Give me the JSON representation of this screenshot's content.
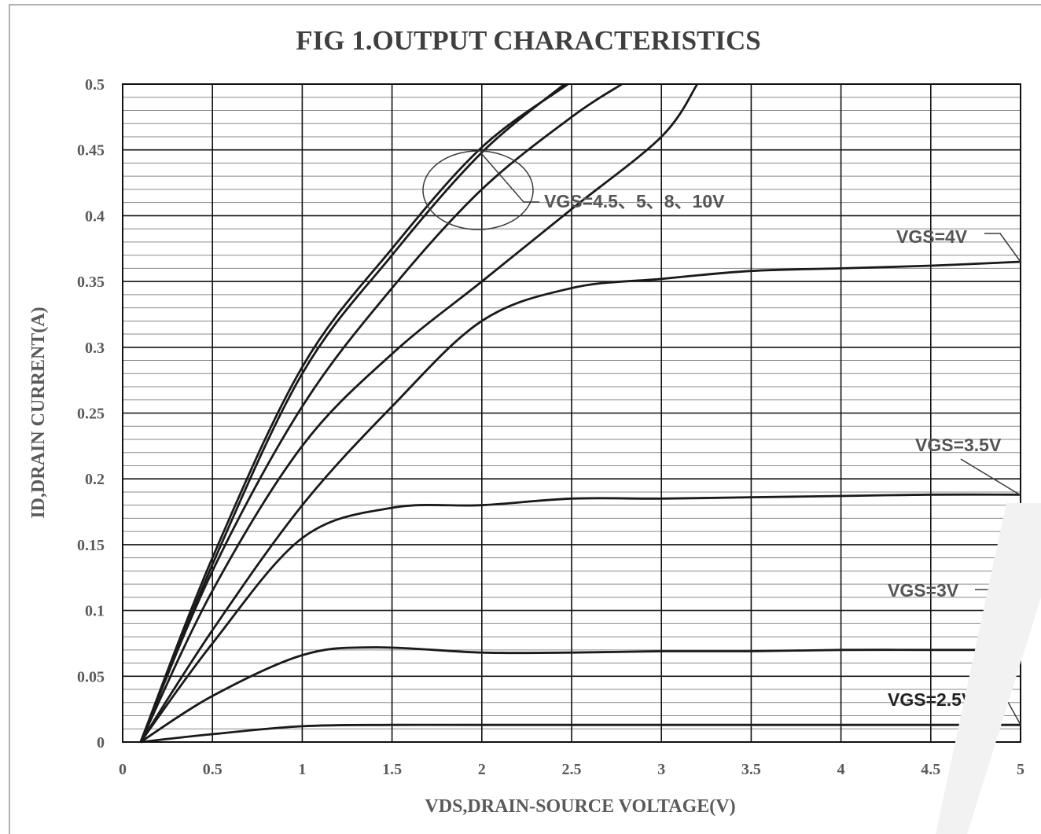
{
  "chart_data": {
    "type": "line",
    "title": "FIG 1.OUTPUT CHARACTERISTICS",
    "xlabel": "VDS,DRAIN-SOURCE   VOLTAGE(V)",
    "ylabel": "ID,DRAIN   CURRENT(A)",
    "xlim": [
      0,
      5
    ],
    "ylim": [
      0,
      0.5
    ],
    "x_ticks": [
      "0",
      "0.5",
      "1",
      "1.5",
      "2",
      "2.5",
      "3",
      "3.5",
      "4",
      "4.5",
      "5"
    ],
    "y_ticks": [
      "0",
      "0.05",
      "0.1",
      "0.15",
      "0.2",
      "0.25",
      "0.3",
      "0.35",
      "0.4",
      "0.45",
      "0.5"
    ],
    "grid": true,
    "series": [
      {
        "key": "vgs10",
        "values": [
          [
            0.1,
            0
          ],
          [
            0.5,
            0.14
          ],
          [
            1,
            0.285
          ],
          [
            1.5,
            0.375
          ],
          [
            2,
            0.452
          ],
          [
            2.48,
            0.5
          ]
        ]
      },
      {
        "key": "vgs8",
        "values": [
          [
            0.1,
            0
          ],
          [
            0.5,
            0.135
          ],
          [
            1,
            0.28
          ],
          [
            1.5,
            0.37
          ],
          [
            2,
            0.448
          ],
          [
            2.46,
            0.5
          ]
        ]
      },
      {
        "key": "vgs5",
        "values": [
          [
            0.1,
            0
          ],
          [
            0.5,
            0.13
          ],
          [
            1,
            0.255
          ],
          [
            1.5,
            0.345
          ],
          [
            2,
            0.42
          ],
          [
            2.5,
            0.475
          ],
          [
            2.78,
            0.5
          ]
        ]
      },
      {
        "key": "vgs4.5",
        "values": [
          [
            0.1,
            0
          ],
          [
            0.5,
            0.115
          ],
          [
            1,
            0.225
          ],
          [
            1.5,
            0.295
          ],
          [
            2,
            0.35
          ],
          [
            2.5,
            0.405
          ],
          [
            3,
            0.46
          ],
          [
            3.2,
            0.5
          ]
        ]
      },
      {
        "key": "vgs4",
        "values": [
          [
            0.1,
            0
          ],
          [
            0.5,
            0.085
          ],
          [
            1,
            0.18
          ],
          [
            1.5,
            0.255
          ],
          [
            2,
            0.32
          ],
          [
            2.5,
            0.345
          ],
          [
            3,
            0.352
          ],
          [
            3.5,
            0.358
          ],
          [
            4,
            0.36
          ],
          [
            4.5,
            0.362
          ],
          [
            5,
            0.365
          ]
        ]
      },
      {
        "key": "vgs3.5",
        "values": [
          [
            0.1,
            0
          ],
          [
            0.5,
            0.075
          ],
          [
            1,
            0.155
          ],
          [
            1.5,
            0.178
          ],
          [
            2,
            0.18
          ],
          [
            2.5,
            0.185
          ],
          [
            3,
            0.185
          ],
          [
            3.5,
            0.186
          ],
          [
            4,
            0.187
          ],
          [
            4.5,
            0.188
          ],
          [
            5,
            0.188
          ]
        ]
      },
      {
        "key": "vgs3",
        "values": [
          [
            0.1,
            0
          ],
          [
            0.5,
            0.035
          ],
          [
            1,
            0.066
          ],
          [
            1.4,
            0.072
          ],
          [
            2,
            0.068
          ],
          [
            2.5,
            0.068
          ],
          [
            3,
            0.069
          ],
          [
            3.5,
            0.069
          ],
          [
            4,
            0.07
          ],
          [
            4.5,
            0.07
          ],
          [
            5,
            0.07
          ]
        ]
      },
      {
        "key": "vgs2.5",
        "values": [
          [
            0.1,
            0
          ],
          [
            0.5,
            0.006
          ],
          [
            1,
            0.012
          ],
          [
            1.5,
            0.013
          ],
          [
            2,
            0.013
          ],
          [
            3,
            0.013
          ],
          [
            4,
            0.013
          ],
          [
            5,
            0.013
          ]
        ]
      }
    ],
    "annotations": {
      "group_label": "VGS=4.5、5、8、10V",
      "vgs4_label": "VGS=4V",
      "vgs35_label": "VGS=3.5V",
      "vgs3_label": "VGS=3V",
      "vgs25_label": "VGS=2.5V"
    }
  }
}
